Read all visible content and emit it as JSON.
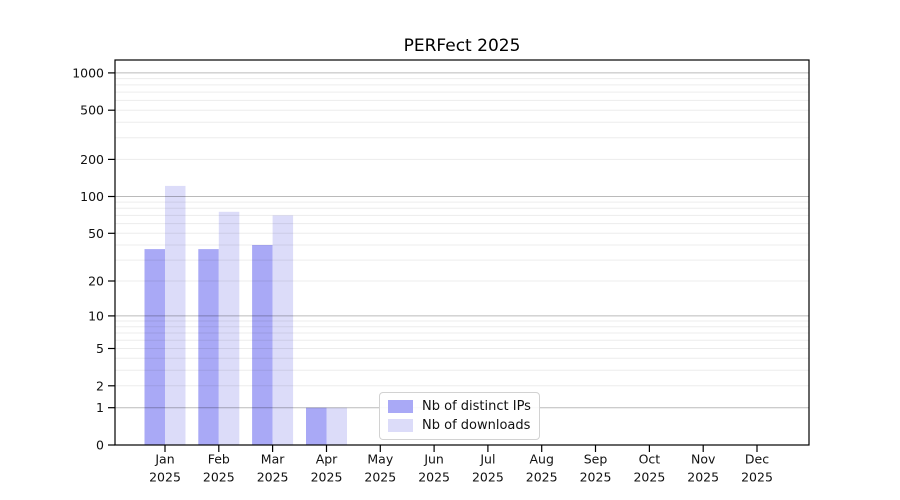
{
  "title": "PERFect 2025",
  "chart_data": {
    "type": "bar",
    "title": "PERFect 2025",
    "categories": [
      "Jan",
      "Feb",
      "Mar",
      "Apr",
      "May",
      "Jun",
      "Jul",
      "Aug",
      "Sep",
      "Oct",
      "Nov",
      "Dec"
    ],
    "category_year": "2025",
    "series": [
      {
        "name": "Nb of distinct IPs",
        "color": "#a9a9f6",
        "values": [
          37,
          37,
          40,
          1,
          0,
          0,
          0,
          0,
          0,
          0,
          0,
          0
        ]
      },
      {
        "name": "Nb of downloads",
        "color": "#dcdcf9",
        "values": [
          122,
          75,
          70,
          1,
          0,
          0,
          0,
          0,
          0,
          0,
          0,
          0
        ]
      }
    ],
    "xlabel": "",
    "ylabel": "",
    "yscale": "log1p",
    "yticks": [
      0,
      1,
      2,
      5,
      10,
      20,
      50,
      100,
      200,
      500,
      1000
    ],
    "ylim": [
      0,
      1270
    ],
    "grid": "horizontal",
    "grid_over_bars": true,
    "legend_position": "lower-center-inside"
  },
  "legend": {
    "items": [
      {
        "label": "Nb of distinct IPs",
        "color": "#a9a9f6"
      },
      {
        "label": "Nb of downloads",
        "color": "#dcdcf9"
      }
    ]
  },
  "colors": {
    "background": "#ffffff",
    "spine": "#000000",
    "tick_label": "#111111",
    "major_grid": "#bcbcbc",
    "minor_grid": "#ebebeb",
    "bar_dark": "#a9a9f6",
    "bar_light": "#dcdcf9"
  }
}
